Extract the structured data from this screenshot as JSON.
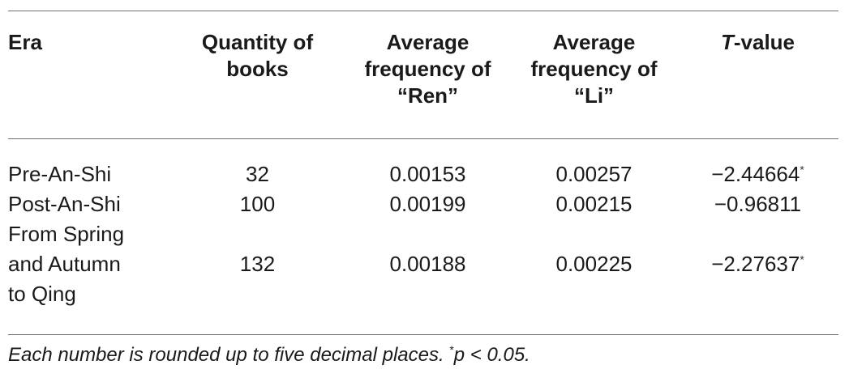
{
  "table": {
    "headers": {
      "era": "Era",
      "quantity_line1": "Quantity of",
      "quantity_line2": "books",
      "ren_line1": "Average",
      "ren_line2": "frequency of",
      "ren_line3": "“Ren”",
      "li_line1": "Average",
      "li_line2": "frequency of",
      "li_line3": "“Li”",
      "t_italic": "T",
      "t_rest": "-value"
    },
    "rows": [
      {
        "era": "Pre-An-Shi",
        "quantity": "32",
        "ren": "0.00153",
        "li": "0.00257",
        "t": "−2.44664",
        "sig": "*"
      },
      {
        "era": "Post-An-Shi",
        "quantity": "100",
        "ren": "0.00199",
        "li": "0.00215",
        "t": "−0.96811",
        "sig": ""
      },
      {
        "era_line1": "From Spring",
        "era_line2": "and Autumn",
        "era_line3": "to Qing",
        "quantity": "132",
        "ren": "0.00188",
        "li": "0.00225",
        "t": "−2.27637",
        "sig": "*"
      }
    ]
  },
  "footnote": {
    "text": "Each number is rounded up to five decimal places. ",
    "sup": "*",
    "text2": "p < 0.05."
  }
}
